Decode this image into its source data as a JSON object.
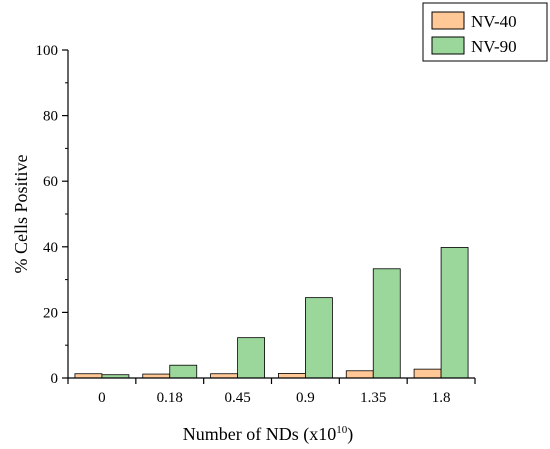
{
  "chart_data": {
    "type": "bar",
    "categories": [
      "0",
      "0.18",
      "0.45",
      "0.9",
      "1.35",
      "1.8"
    ],
    "series": [
      {
        "name": "NV-40",
        "values": [
          1.3,
          1.2,
          1.3,
          1.4,
          2.2,
          2.7
        ],
        "color": "#FFC896"
      },
      {
        "name": "NV-90",
        "values": [
          1.0,
          3.9,
          12.3,
          24.5,
          33.3,
          39.8
        ],
        "color": "#9BD79B"
      }
    ],
    "xlabel_text": "Number of NDs (x10",
    "xlabel_sup": "10",
    "xlabel_close": ")",
    "ylabel": "% Cells Positive",
    "ylim": [
      0,
      100
    ],
    "yticks": [
      "0",
      "20",
      "40",
      "60",
      "80",
      "100"
    ],
    "grid": false,
    "legend_placement": "top-right"
  }
}
